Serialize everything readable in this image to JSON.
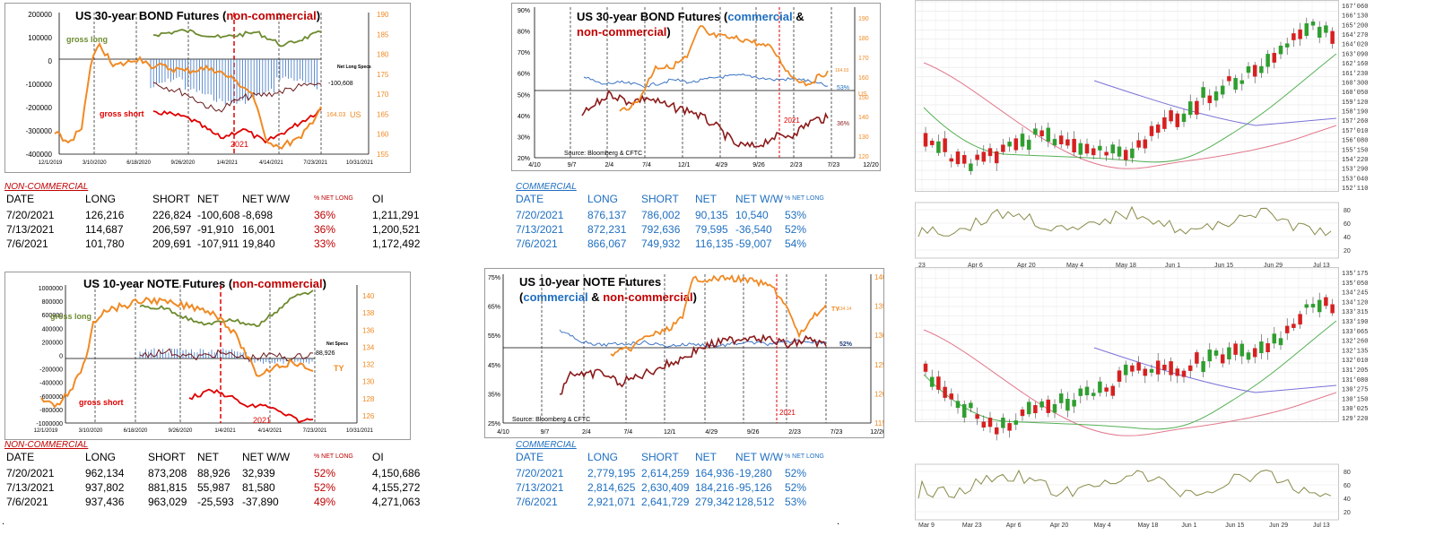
{
  "bond_noncomm": {
    "title_a": "US 30-year BOND Futures (",
    "title_b": "non-commercial",
    "title_c": ")",
    "left_ticks": [
      "200000",
      "100000",
      "0",
      "-100000",
      "-200000",
      "-300000",
      "-400000"
    ],
    "right_ticks": [
      "190",
      "185",
      "180",
      "175",
      "170",
      "165",
      "160",
      "155"
    ],
    "x_ticks": [
      "12/1/2019",
      "3/10/2020",
      "6/18/2020",
      "9/26/2020",
      "1/4/2021",
      "4/14/2021",
      "7/23/2021",
      "10/31/2021"
    ],
    "label_gross_long": "gross long",
    "label_gross_short": "gross short",
    "label_net_long": "Net Long Specs",
    "label_net_value": "-100,608",
    "label_price": "164.03",
    "label_symbol": "US",
    "label_year": "2021",
    "colors": {
      "long": "#6e8b2f",
      "short": "#e00000",
      "net": "#6b1a1a",
      "price": "#f08a24",
      "bars": "#3d74c4"
    }
  },
  "bond_comm": {
    "title_a": "US 30-year BOND Futures (",
    "title_b": "commercial",
    "title_c": " &",
    "title_d": "non-commercial",
    "title_e": ")",
    "left_ticks": [
      "90%",
      "80%",
      "70%",
      "60%",
      "50%",
      "40%",
      "30%",
      "20%"
    ],
    "right_ticks": [
      "190",
      "180",
      "170",
      "160",
      "150",
      "140",
      "130",
      "120"
    ],
    "x_ticks": [
      "4/10",
      "9/7",
      "2/4",
      "7/4",
      "12/1",
      "4/29",
      "9/26",
      "2/23",
      "7/23",
      "12/20"
    ],
    "label_comm": "53%",
    "label_noncomm": "36%",
    "label_price": "164.03",
    "label_symbol": "US",
    "label_year": "2021",
    "source": "Source: Bloomberg & CFTC"
  },
  "bond_noncomm_table": {
    "section": "NON-COMMERCIAL",
    "headers": [
      "DATE",
      "LONG",
      "SHORT",
      "NET",
      "NET W/W",
      "% NET LONG",
      "OI"
    ],
    "rows": [
      [
        "7/20/2021",
        "126,216",
        "226,824",
        "-100,608",
        "-8,698",
        "36%",
        "1,211,291"
      ],
      [
        "7/13/2021",
        "114,687",
        "206,597",
        "-91,910",
        "16,001",
        "36%",
        "1,200,521"
      ],
      [
        "7/6/2021",
        "101,780",
        "209,691",
        "-107,911",
        "19,840",
        "33%",
        "1,172,492"
      ]
    ]
  },
  "bond_comm_table": {
    "section": "COMMERCIAL",
    "headers": [
      "DATE",
      "LONG",
      "SHORT",
      "NET",
      "NET W/W",
      "% NET LONG"
    ],
    "rows": [
      [
        "7/20/2021",
        "876,137",
        "786,002",
        "90,135",
        "10,540",
        "53%"
      ],
      [
        "7/13/2021",
        "872,231",
        "792,636",
        "79,595",
        "-36,540",
        "52%"
      ],
      [
        "7/6/2021",
        "866,067",
        "749,932",
        "116,135",
        "-59,007",
        "54%"
      ]
    ]
  },
  "note_noncomm": {
    "title_a": "US 10-year NOTE Futures (",
    "title_b": "non-commercial",
    "title_c": ")",
    "left_ticks": [
      "1000000",
      "800000",
      "600000",
      "400000",
      "200000",
      "0",
      "-200000",
      "-400000",
      "-600000",
      "-800000",
      "-1000000"
    ],
    "right_ticks": [
      "140",
      "138",
      "136",
      "134",
      "132",
      "130",
      "128",
      "126"
    ],
    "x_ticks": [
      "12/1/2019",
      "3/10/2020",
      "6/18/2020",
      "9/26/2020",
      "1/4/2021",
      "4/14/2021",
      "7/23/2021",
      "10/31/2021"
    ],
    "label_gross_long": "gross long",
    "label_gross_short": "gross short",
    "label_net_specs": "Net Specs",
    "label_net_value": "88,926",
    "label_symbol": "TY",
    "label_year": "2021"
  },
  "note_comm": {
    "title_a": "US 10-year NOTE Futures",
    "title_b": "(",
    "title_c": "commercial",
    "title_d": " & ",
    "title_e": "non-commercial",
    "title_f": ")",
    "left_ticks": [
      "75%",
      "65%",
      "55%",
      "45%",
      "35%",
      "25%"
    ],
    "right_ticks": [
      "140",
      "135",
      "130",
      "125",
      "120",
      "115"
    ],
    "x_ticks": [
      "4/10",
      "9/7",
      "2/4",
      "7/4",
      "12/1",
      "4/29",
      "9/26",
      "2/23",
      "7/23",
      "12/20"
    ],
    "label_comm": "52%",
    "label_price": "134.14",
    "label_symbol": "TY",
    "label_year": "2021",
    "source": "Source: Bloomberg & CFTC"
  },
  "note_noncomm_table": {
    "section": "NON-COMMERCIAL",
    "headers": [
      "DATE",
      "LONG",
      "SHORT",
      "NET",
      "NET W/W",
      "% NET LONG",
      "OI"
    ],
    "rows": [
      [
        "7/20/2021",
        "962,134",
        "873,208",
        "88,926",
        "32,939",
        "52%",
        "4,150,686"
      ],
      [
        "7/13/2021",
        "937,802",
        "881,815",
        "55,987",
        "81,580",
        "52%",
        "4,155,272"
      ],
      [
        "7/6/2021",
        "937,436",
        "963,029",
        "-25,593",
        "-37,890",
        "49%",
        "4,271,063"
      ]
    ]
  },
  "note_comm_table": {
    "section": "COMMERCIAL",
    "headers": [
      "DATE",
      "LONG",
      "SHORT",
      "NET",
      "NET W/W",
      "% NET LONG"
    ],
    "rows": [
      [
        "7/20/2021",
        "2,779,195",
        "2,614,259",
        "164,936",
        "-19,280",
        "52%"
      ],
      [
        "7/13/2021",
        "2,814,625",
        "2,630,409",
        "184,216",
        "-95,126",
        "52%"
      ],
      [
        "7/6/2021",
        "2,921,071",
        "2,641,729",
        "279,342",
        "128,512",
        "53%"
      ]
    ]
  },
  "candle_top": {
    "price_ticks": [
      "167'060",
      "166'130",
      "165'200",
      "164'270",
      "164'020",
      "163'090",
      "162'160",
      "161'230",
      "160'300",
      "160'050",
      "159'120",
      "158'190",
      "157'260",
      "157'010",
      "156'080",
      "155'150",
      "154'220",
      "153'290",
      "153'040",
      "152'110"
    ],
    "osc_ticks": [
      "80",
      "60",
      "40",
      "20"
    ],
    "x_ticks": [
      "23",
      "Apr 6",
      "Apr 20",
      "May 4",
      "May 18",
      "Jun 1",
      "Jun 15",
      "Jun 29",
      "Jul 13"
    ]
  },
  "candle_bottom": {
    "price_ticks": [
      "135'175",
      "135'050",
      "134'245",
      "134'120",
      "133'315",
      "133'190",
      "133'065",
      "132'260",
      "132'135",
      "132'010",
      "131'205",
      "131'080",
      "130'275",
      "130'150",
      "130'025",
      "129'220"
    ],
    "osc_ticks": [
      "80",
      "60",
      "40",
      "20"
    ],
    "x_ticks": [
      "Mar 9",
      "Mar 23",
      "Apr 6",
      "Apr 20",
      "May 4",
      "May 18",
      "Jun 1",
      "Jun 15",
      "Jun 29",
      "Jul 13"
    ]
  },
  "chart_data": [
    {
      "type": "line",
      "title": "US 30-year BOND Futures (non-commercial)",
      "x": [
        "12/1/2019",
        "3/10/2020",
        "6/18/2020",
        "9/26/2020",
        "1/4/2021",
        "4/14/2021",
        "7/23/2021"
      ],
      "series": [
        {
          "name": "gross long",
          "values": [
            null,
            null,
            130000,
            120000,
            110000,
            80000,
            126216
          ]
        },
        {
          "name": "gross short",
          "values": [
            null,
            null,
            -210000,
            -270000,
            -330000,
            -300000,
            -226824
          ]
        },
        {
          "name": "Net Long Specs",
          "values": [
            -300000,
            100000,
            -50000,
            -150000,
            -200000,
            -140000,
            -100608
          ]
        },
        {
          "name": "US",
          "values": [
            158,
            180,
            178,
            174,
            168,
            157,
            164.03
          ]
        }
      ],
      "ylim_left": [
        -400000,
        200000
      ],
      "ylim_right": [
        155,
        190
      ]
    },
    {
      "type": "line",
      "title": "US 30-year BOND Futures (commercial & non-commercial)",
      "x": [
        "4/10",
        "9/7",
        "2/4",
        "7/4",
        "12/1",
        "4/29",
        "9/26",
        "2/23",
        "7/23"
      ],
      "series": [
        {
          "values": [
            null,
            56,
            52,
            54,
            57,
            58,
            60,
            54,
            53
          ]
        },
        {
          "values": [
            null,
            38,
            48,
            45,
            42,
            38,
            30,
            32,
            36
          ]
        },
        {
          "name": "US",
          "values": [
            null,
            null,
            150,
            158,
            162,
            185,
            172,
            155,
            164.03
          ]
        }
      ],
      "ylim_left": [
        20,
        90
      ],
      "ylim_right": [
        120,
        190
      ]
    },
    {
      "type": "line",
      "title": "US 10-year NOTE Futures (non-commercial)",
      "x": [
        "12/1/2019",
        "3/10/2020",
        "6/18/2020",
        "9/26/2020",
        "1/4/2021",
        "4/14/2021",
        "7/23/2021"
      ],
      "series": [
        {
          "name": "gross long",
          "values": [
            null,
            null,
            850000,
            700000,
            600000,
            750000,
            962134
          ]
        },
        {
          "name": "gross short",
          "values": [
            null,
            null,
            null,
            -500000,
            -450000,
            -650000,
            -873208
          ]
        },
        {
          "name": "Net Specs",
          "values": [
            -600000,
            600000,
            50000,
            100000,
            100000,
            0,
            88926
          ]
        },
        {
          "name": "TY",
          "values": [
            131,
            138,
            139,
            138,
            137,
            132,
            134
          ]
        }
      ],
      "ylim_left": [
        -1000000,
        1000000
      ],
      "ylim_right": [
        126,
        140
      ]
    },
    {
      "type": "line",
      "title": "US 10-year NOTE Futures (commercial & non-commercial)",
      "x": [
        "4/10",
        "9/7",
        "2/4",
        "7/4",
        "12/1",
        "4/29",
        "9/26",
        "2/23",
        "7/23"
      ],
      "series": [
        {
          "values": [
            null,
            57,
            50,
            52,
            50,
            51,
            52,
            52,
            52
          ]
        },
        {
          "values": [
            null,
            35,
            42,
            40,
            45,
            50,
            50,
            48,
            52
          ]
        },
        {
          "name": "TY",
          "values": [
            null,
            null,
            123,
            130,
            134,
            138,
            138,
            131,
            134.14
          ]
        }
      ],
      "ylim_left": [
        25,
        75
      ],
      "ylim_right": [
        115,
        140
      ]
    }
  ]
}
